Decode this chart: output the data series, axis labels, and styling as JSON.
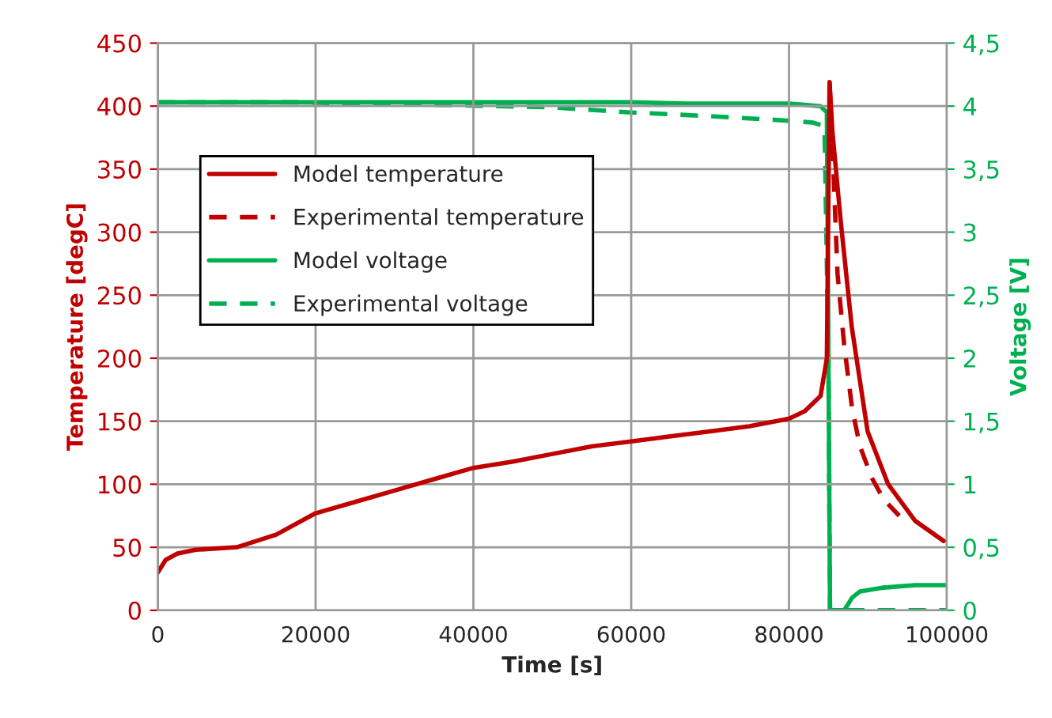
{
  "chart_data": {
    "type": "line",
    "xlabel": "Time [s]",
    "ylabel": "Temperature [degC]",
    "y2label": "Voltage [V]",
    "xlim": [
      0,
      100000
    ],
    "xticks": [
      0,
      20000,
      40000,
      60000,
      80000,
      100000
    ],
    "ylim": [
      0,
      450
    ],
    "yticks": [
      0,
      50,
      100,
      150,
      200,
      250,
      300,
      350,
      400,
      450
    ],
    "y2lim": [
      0,
      4.5
    ],
    "y2ticks": [
      0,
      {
        "value": 0.5,
        "label": "0,5"
      },
      1,
      {
        "value": 1.5,
        "label": "1,5"
      },
      2,
      {
        "value": 2.5,
        "label": "2,5"
      },
      3,
      {
        "value": 3.5,
        "label": "3,5"
      },
      4,
      {
        "value": 4.5,
        "label": "4,5"
      }
    ],
    "grid": true,
    "legend": "top left",
    "series": [
      {
        "name": "Model temperature",
        "color": "#c00000",
        "line_style": "solid",
        "x": [
          0,
          1000,
          2500,
          4800,
          10000,
          15000,
          20000,
          25000,
          30000,
          35000,
          40000,
          45000,
          50000,
          55000,
          60000,
          65000,
          70000,
          75000,
          80000,
          82000,
          84000,
          84800,
          85140,
          85500,
          86550,
          87950,
          89960,
          92570,
          95980,
          99600
        ],
        "values": [
          30,
          40,
          45,
          48,
          50,
          60,
          77,
          86,
          95,
          104,
          113,
          118,
          124,
          130,
          134,
          138,
          142,
          146,
          152,
          158,
          170,
          200,
          419,
          380,
          309,
          225,
          142,
          100,
          71,
          55
        ]
      },
      {
        "name": "Experimental temperature",
        "color": "#c00000",
        "line_style": "dashed",
        "x": [
          85140,
          85500,
          86150,
          87000,
          88000,
          89000,
          90500,
          92000,
          93970
        ],
        "values": [
          419,
          370,
          267,
          210,
          160,
          130,
          105,
          88,
          75
        ]
      },
      {
        "name": "Model voltage",
        "color": "#00b050",
        "line_style": "solid",
        "axis": "y2",
        "x": [
          0,
          20000,
          40000,
          60000,
          67000,
          80000,
          84000,
          84800,
          85000,
          85200,
          86000,
          87000,
          88000,
          89000,
          92000,
          96000,
          100000
        ],
        "values": [
          4.03,
          4.03,
          4.03,
          4.03,
          4.02,
          4.02,
          4.0,
          3.95,
          2.0,
          0,
          0,
          0,
          0.1,
          0.15,
          0.18,
          0.2,
          0.2
        ]
      },
      {
        "name": "Experimental voltage",
        "color": "#00b050",
        "line_style": "dashed",
        "axis": "y2",
        "x": [
          0,
          17000,
          35000,
          50000,
          60000,
          70000,
          78500,
          83000,
          84500,
          85000,
          85200,
          90000,
          100000
        ],
        "values": [
          4.03,
          4.03,
          4.01,
          3.99,
          3.95,
          3.92,
          3.89,
          3.87,
          3.84,
          2.0,
          0,
          0,
          0
        ]
      }
    ]
  }
}
